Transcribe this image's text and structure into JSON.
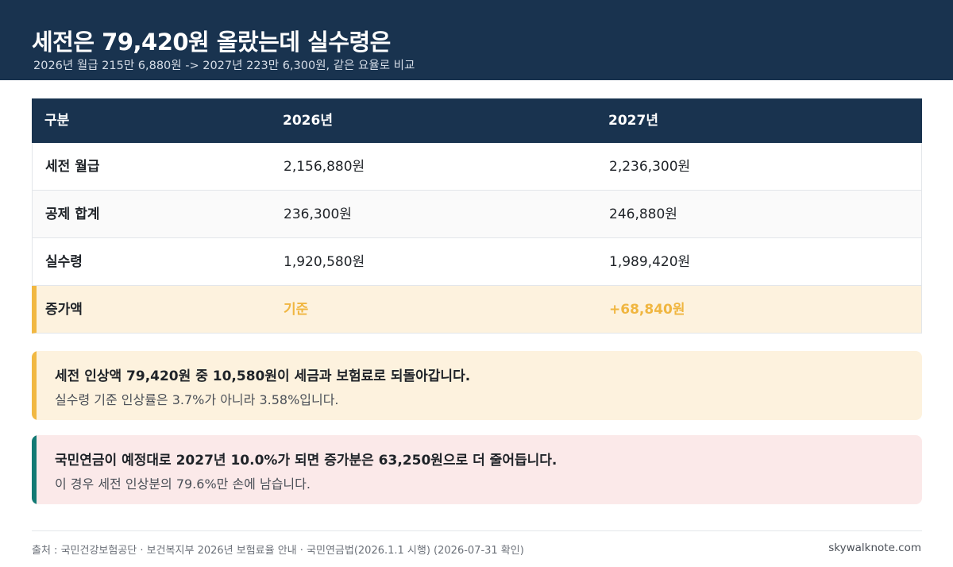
{
  "header": {
    "title": "세전은 79,420원 올랐는데 실수령은",
    "subtitle": "2026년 월급 215만 6,880원 -> 2027년 223만 6,300원, 같은 요율로 비교"
  },
  "table": {
    "headers": [
      "구분",
      "2026년",
      "2027년"
    ],
    "rows": [
      {
        "label": "세전 월급",
        "v2026": "2,156,880원",
        "v2027": "2,236,300원"
      },
      {
        "label": "공제 합계",
        "v2026": "236,300원",
        "v2027": "246,880원"
      },
      {
        "label": "실수령",
        "v2026": "1,920,580원",
        "v2027": "1,989,420원"
      },
      {
        "label": "증가액",
        "v2026": "기준",
        "v2027": "+68,840원"
      }
    ]
  },
  "notes": [
    {
      "line1": "세전 인상액 79,420원 중 10,580원이 세금과 보험료로 되돌아갑니다.",
      "line2": "실수령 기준 인상률은 3.7%가 아니라 3.58%입니다.",
      "accent": "#f1b842"
    },
    {
      "line1": "국민연금이 예정대로 2027년 10.0%가 되면 증가분은 63,250원으로 더 줄어듭니다.",
      "line2": "이 경우 세전 인상분의 79.6%만 손에 남습니다.",
      "accent": "#127a74"
    }
  ],
  "footer": {
    "source": "출처 : 국민건강보험공단 · 보건복지부 2026년 보험료율 안내 · 국민연금법(2026.1.1 시행) (2026-07-31 확인)",
    "site": "skywalknote.com"
  },
  "colors": {
    "navy": "#19334f",
    "highlight": "#f0b640",
    "highlight_bg": "#fdf2de",
    "note2_bg": "#fbe9e9"
  }
}
